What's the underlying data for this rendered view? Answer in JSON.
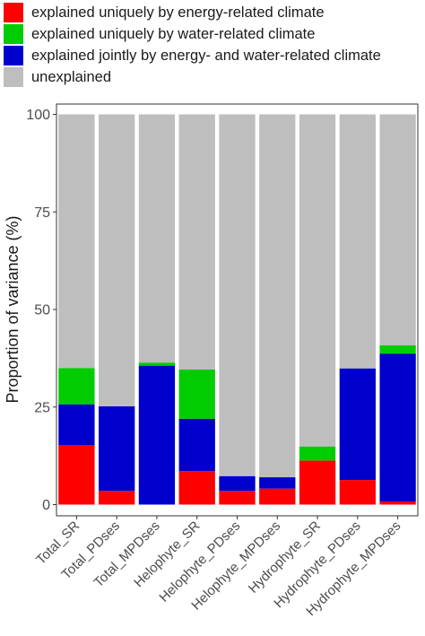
{
  "chart_data": {
    "type": "bar",
    "stacked": true,
    "title": "",
    "xlabel": "",
    "ylabel": "Proportion of variance (%)",
    "ylim": [
      0,
      100
    ],
    "yticks": [
      "0",
      "25",
      "50",
      "75",
      "100"
    ],
    "grid": false,
    "legend_position": "top",
    "categories": [
      "Total_SR",
      "Total_PDses",
      "Total_MPDses",
      "Helophyte_SR",
      "Helophyte_PDses",
      "Helophyte_MPDses",
      "Hydrophyte_SR",
      "Hydrophyte_PDses",
      "Hydrophyte_MPDses"
    ],
    "series": [
      {
        "name": "explained uniquely by energy-related climate",
        "color": "#ff0000",
        "values": [
          15.2,
          3.5,
          0.0,
          8.6,
          3.5,
          4.1,
          11.3,
          6.3,
          0.8
        ]
      },
      {
        "name": "explained jointly by energy- and water-related climate",
        "color": "#0000cc",
        "values": [
          10.5,
          21.7,
          35.6,
          13.4,
          3.8,
          2.9,
          0.0,
          28.6,
          37.9
        ]
      },
      {
        "name": "explained uniquely by water-related climate",
        "color": "#00cc00",
        "values": [
          9.3,
          0.0,
          0.8,
          12.6,
          0.0,
          0.0,
          3.6,
          0.0,
          2.1
        ]
      },
      {
        "name": "unexplained",
        "color": "#bebebe",
        "values": [
          65.0,
          74.8,
          63.6,
          65.4,
          92.7,
          93.0,
          85.1,
          65.1,
          59.2
        ]
      }
    ]
  },
  "legend": [
    {
      "label": "explained uniquely by energy-related climate",
      "color": "#ff0000"
    },
    {
      "label": "explained uniquely by water-related climate",
      "color": "#00cc00"
    },
    {
      "label": "explained jointly by energy- and water-related climate",
      "color": "#0000cc"
    },
    {
      "label": "unexplained",
      "color": "#bebebe"
    }
  ]
}
